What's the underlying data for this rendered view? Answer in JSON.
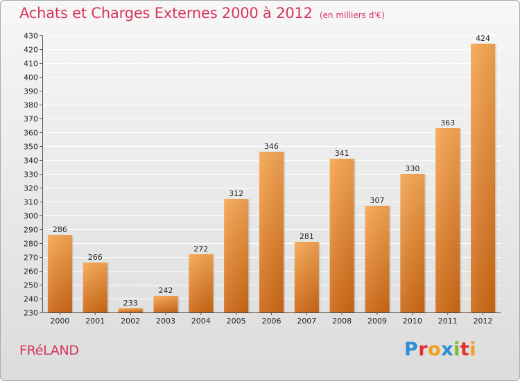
{
  "header": {
    "title": "Achats et Charges Externes 2000 à 2012",
    "unit": "(en milliers d'€)"
  },
  "footer": {
    "commune": "FRéLAND",
    "logo_letters": [
      {
        "char": "P",
        "color": "#2a8fd4"
      },
      {
        "char": "r",
        "color": "#e0312f"
      },
      {
        "char": "o",
        "color": "#f0a01e"
      },
      {
        "char": "x",
        "color": "#2a8fd4"
      },
      {
        "char": "i",
        "color": "#7cb82f"
      },
      {
        "char": "t",
        "color": "#e0312f"
      },
      {
        "char": "i",
        "color": "#f0a01e"
      }
    ]
  },
  "colors": {
    "title": "#d4365b",
    "bar_top": "#f6a552",
    "bar_bottom": "#cf6a14",
    "grid": "#ffffff"
  },
  "chart_data": {
    "type": "bar",
    "title": "Achats et Charges Externes 2000 à 2012",
    "subtitle": "(en milliers d'€)",
    "categories": [
      "2000",
      "2001",
      "2002",
      "2003",
      "2004",
      "2005",
      "2006",
      "2007",
      "2008",
      "2009",
      "2010",
      "2011",
      "2012"
    ],
    "values": [
      286,
      266,
      233,
      242,
      272,
      312,
      346,
      281,
      341,
      307,
      330,
      363,
      424
    ],
    "ylim": [
      230,
      430
    ],
    "yticks": [
      230,
      240,
      250,
      260,
      270,
      280,
      290,
      300,
      310,
      320,
      330,
      340,
      350,
      360,
      370,
      380,
      390,
      400,
      410,
      420,
      430
    ],
    "grid": true,
    "data_labels": true
  }
}
